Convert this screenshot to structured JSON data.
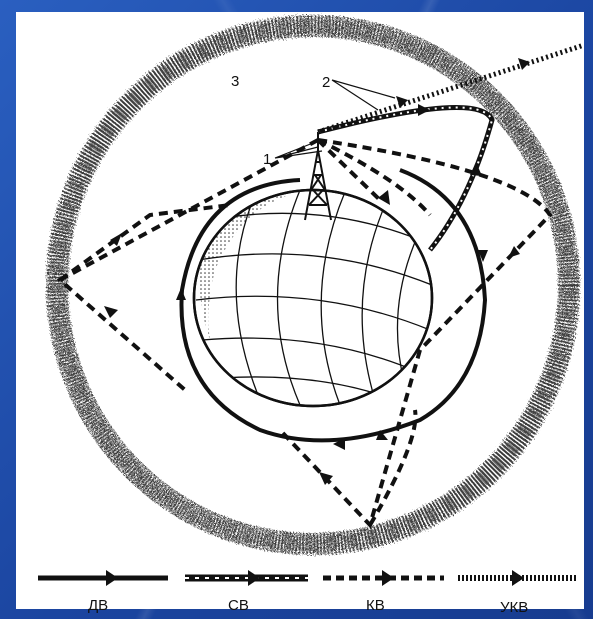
{
  "labels": {
    "transmitter": "1",
    "satellite_path": "2",
    "ionosphere": "3"
  },
  "legend": [
    {
      "text": "ДВ",
      "style": "solid"
    },
    {
      "text": "СВ",
      "style": "dashed-dotted"
    },
    {
      "text": "КВ",
      "style": "dashed"
    },
    {
      "text": "УКВ",
      "style": "dotted"
    }
  ],
  "colors": {
    "background": "#1f4fa8",
    "paper": "#ffffff",
    "ink": "#111111"
  }
}
